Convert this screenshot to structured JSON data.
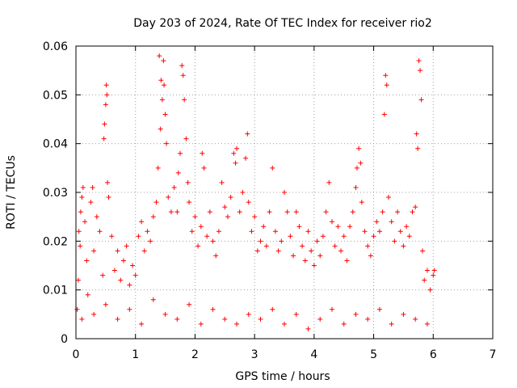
{
  "chart_data": {
    "type": "scatter",
    "title": "Day 203 of 2024, Rate Of TEC Index for receiver rio2",
    "xlabel": "GPS time / hours",
    "ylabel": "ROTI / TECUs",
    "xlim": [
      0,
      7
    ],
    "ylim": [
      0,
      0.06
    ],
    "x_ticks": [
      0,
      1,
      2,
      3,
      4,
      5,
      6,
      7
    ],
    "x_tick_labels": [
      "0",
      "1",
      "2",
      "3",
      "4",
      "5",
      "6",
      "7"
    ],
    "y_ticks": [
      0,
      0.01,
      0.02,
      0.03,
      0.04,
      0.05,
      0.06
    ],
    "y_tick_labels": [
      "0",
      "0.01",
      "0.02",
      "0.03",
      "0.04",
      "0.05",
      "0.06"
    ],
    "grid": true,
    "marker": "plus",
    "color": "#ff0000",
    "series": [
      {
        "name": "ROTI",
        "points": [
          [
            0.02,
            0.006
          ],
          [
            0.04,
            0.012
          ],
          [
            0.05,
            0.022
          ],
          [
            0.07,
            0.019
          ],
          [
            0.08,
            0.026
          ],
          [
            0.1,
            0.029
          ],
          [
            0.12,
            0.031
          ],
          [
            0.15,
            0.024
          ],
          [
            0.18,
            0.016
          ],
          [
            0.2,
            0.009
          ],
          [
            0.25,
            0.028
          ],
          [
            0.28,
            0.031
          ],
          [
            0.3,
            0.018
          ],
          [
            0.35,
            0.025
          ],
          [
            0.4,
            0.022
          ],
          [
            0.45,
            0.013
          ],
          [
            0.47,
            0.041
          ],
          [
            0.48,
            0.044
          ],
          [
            0.5,
            0.048
          ],
          [
            0.51,
            0.052
          ],
          [
            0.52,
            0.05
          ],
          [
            0.53,
            0.032
          ],
          [
            0.55,
            0.029
          ],
          [
            0.6,
            0.021
          ],
          [
            0.65,
            0.014
          ],
          [
            0.7,
            0.018
          ],
          [
            0.75,
            0.012
          ],
          [
            0.8,
            0.016
          ],
          [
            0.85,
            0.019
          ],
          [
            0.9,
            0.011
          ],
          [
            0.95,
            0.015
          ],
          [
            1.0,
            0.013
          ],
          [
            1.05,
            0.021
          ],
          [
            1.1,
            0.024
          ],
          [
            1.15,
            0.018
          ],
          [
            1.2,
            0.022
          ],
          [
            1.25,
            0.02
          ],
          [
            1.3,
            0.025
          ],
          [
            1.35,
            0.028
          ],
          [
            1.38,
            0.035
          ],
          [
            1.4,
            0.058
          ],
          [
            1.42,
            0.043
          ],
          [
            1.43,
            0.053
          ],
          [
            1.45,
            0.049
          ],
          [
            1.47,
            0.057
          ],
          [
            1.48,
            0.052
          ],
          [
            1.5,
            0.046
          ],
          [
            1.52,
            0.04
          ],
          [
            1.55,
            0.029
          ],
          [
            1.6,
            0.026
          ],
          [
            1.65,
            0.031
          ],
          [
            1.7,
            0.026
          ],
          [
            1.72,
            0.034
          ],
          [
            1.75,
            0.038
          ],
          [
            1.78,
            0.056
          ],
          [
            1.8,
            0.054
          ],
          [
            1.82,
            0.049
          ],
          [
            1.85,
            0.041
          ],
          [
            1.88,
            0.032
          ],
          [
            1.9,
            0.028
          ],
          [
            1.95,
            0.022
          ],
          [
            2.0,
            0.025
          ],
          [
            2.05,
            0.019
          ],
          [
            2.1,
            0.023
          ],
          [
            2.12,
            0.038
          ],
          [
            2.15,
            0.035
          ],
          [
            2.2,
            0.021
          ],
          [
            2.25,
            0.026
          ],
          [
            2.3,
            0.02
          ],
          [
            2.35,
            0.017
          ],
          [
            2.4,
            0.022
          ],
          [
            2.45,
            0.032
          ],
          [
            2.5,
            0.027
          ],
          [
            2.55,
            0.025
          ],
          [
            2.6,
            0.029
          ],
          [
            2.65,
            0.038
          ],
          [
            2.68,
            0.036
          ],
          [
            2.7,
            0.039
          ],
          [
            2.75,
            0.026
          ],
          [
            2.8,
            0.03
          ],
          [
            2.85,
            0.037
          ],
          [
            2.88,
            0.042
          ],
          [
            2.9,
            0.028
          ],
          [
            2.95,
            0.022
          ],
          [
            3.0,
            0.025
          ],
          [
            3.05,
            0.018
          ],
          [
            3.1,
            0.02
          ],
          [
            3.15,
            0.023
          ],
          [
            3.2,
            0.019
          ],
          [
            3.25,
            0.026
          ],
          [
            3.3,
            0.035
          ],
          [
            3.35,
            0.022
          ],
          [
            3.4,
            0.018
          ],
          [
            3.45,
            0.02
          ],
          [
            3.5,
            0.03
          ],
          [
            3.55,
            0.026
          ],
          [
            3.6,
            0.021
          ],
          [
            3.65,
            0.017
          ],
          [
            3.7,
            0.026
          ],
          [
            3.75,
            0.023
          ],
          [
            3.8,
            0.019
          ],
          [
            3.85,
            0.016
          ],
          [
            3.9,
            0.022
          ],
          [
            3.95,
            0.018
          ],
          [
            4.0,
            0.015
          ],
          [
            4.05,
            0.02
          ],
          [
            4.1,
            0.017
          ],
          [
            4.15,
            0.021
          ],
          [
            4.2,
            0.026
          ],
          [
            4.25,
            0.032
          ],
          [
            4.3,
            0.024
          ],
          [
            4.35,
            0.019
          ],
          [
            4.4,
            0.023
          ],
          [
            4.45,
            0.018
          ],
          [
            4.5,
            0.021
          ],
          [
            4.55,
            0.016
          ],
          [
            4.6,
            0.023
          ],
          [
            4.65,
            0.026
          ],
          [
            4.7,
            0.031
          ],
          [
            4.72,
            0.035
          ],
          [
            4.75,
            0.039
          ],
          [
            4.78,
            0.036
          ],
          [
            4.8,
            0.028
          ],
          [
            4.85,
            0.022
          ],
          [
            4.9,
            0.019
          ],
          [
            4.95,
            0.017
          ],
          [
            5.0,
            0.021
          ],
          [
            5.05,
            0.024
          ],
          [
            5.1,
            0.022
          ],
          [
            5.15,
            0.026
          ],
          [
            5.18,
            0.046
          ],
          [
            5.2,
            0.054
          ],
          [
            5.22,
            0.052
          ],
          [
            5.25,
            0.029
          ],
          [
            5.3,
            0.024
          ],
          [
            5.35,
            0.02
          ],
          [
            5.4,
            0.026
          ],
          [
            5.45,
            0.022
          ],
          [
            5.5,
            0.019
          ],
          [
            5.55,
            0.023
          ],
          [
            5.6,
            0.021
          ],
          [
            5.65,
            0.026
          ],
          [
            5.7,
            0.027
          ],
          [
            5.72,
            0.042
          ],
          [
            5.74,
            0.039
          ],
          [
            5.76,
            0.057
          ],
          [
            5.78,
            0.055
          ],
          [
            5.8,
            0.049
          ],
          [
            5.82,
            0.018
          ],
          [
            5.85,
            0.012
          ],
          [
            5.9,
            0.014
          ],
          [
            5.95,
            0.01
          ],
          [
            6.0,
            0.013
          ],
          [
            6.02,
            0.014
          ],
          [
            0.1,
            0.004
          ],
          [
            0.3,
            0.005
          ],
          [
            0.5,
            0.007
          ],
          [
            0.7,
            0.004
          ],
          [
            0.9,
            0.006
          ],
          [
            1.1,
            0.003
          ],
          [
            1.3,
            0.008
          ],
          [
            1.5,
            0.005
          ],
          [
            1.7,
            0.004
          ],
          [
            1.9,
            0.007
          ],
          [
            2.1,
            0.003
          ],
          [
            2.3,
            0.006
          ],
          [
            2.5,
            0.004
          ],
          [
            2.7,
            0.003
          ],
          [
            2.9,
            0.005
          ],
          [
            3.1,
            0.004
          ],
          [
            3.3,
            0.006
          ],
          [
            3.5,
            0.003
          ],
          [
            3.7,
            0.005
          ],
          [
            3.9,
            0.002
          ],
          [
            4.1,
            0.004
          ],
          [
            4.3,
            0.006
          ],
          [
            4.5,
            0.003
          ],
          [
            4.7,
            0.005
          ],
          [
            4.9,
            0.004
          ],
          [
            5.1,
            0.006
          ],
          [
            5.3,
            0.003
          ],
          [
            5.5,
            0.005
          ],
          [
            5.7,
            0.004
          ],
          [
            5.9,
            0.003
          ]
        ]
      }
    ]
  }
}
